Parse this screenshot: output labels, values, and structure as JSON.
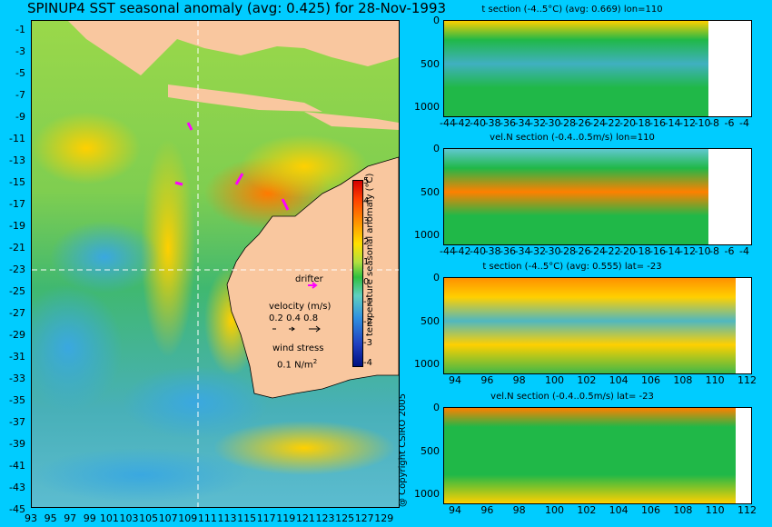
{
  "title": "SPINUP4 SST seasonal anomaly (avg: 0.425) for 28-Nov-1993",
  "map": {
    "lat_labels": [
      "-1",
      "-3",
      "-5",
      "-7",
      "-9",
      "-11",
      "-13",
      "-15",
      "-17",
      "-19",
      "-21",
      "-23",
      "-25",
      "-27",
      "-29",
      "-31",
      "-33",
      "-35",
      "-37",
      "-39",
      "-41",
      "-43",
      "-45"
    ],
    "lon_labels": [
      "93",
      "95",
      "97",
      "99",
      "101",
      "103",
      "105",
      "107",
      "109",
      "111",
      "113",
      "115",
      "117",
      "119",
      "121",
      "123",
      "125",
      "127",
      "129"
    ],
    "colorbar": {
      "ticks": [
        "5",
        "4",
        "3",
        "2",
        "1",
        "0",
        "-1",
        "-2",
        "-3",
        "-4"
      ],
      "title": "temperature seasonal anomaly (°C)"
    },
    "legend": {
      "drifter": "drifter",
      "velocity_title": "velocity (m/s)",
      "velocity_values": "0.2 0.4 0.8",
      "wind_title": "wind stress",
      "wind_value": "0.1 N/m",
      "wind_exp": "2"
    },
    "colors": {
      "land": "#f9c79f",
      "ocean_mid": "#36b544",
      "warm": "#ffd000",
      "cool": "#4ab4d8",
      "drifter": "#ff00ff"
    }
  },
  "panels": [
    {
      "title": "t section (-4..5°C) (avg: 0.669) lon=110",
      "y_ticks": [
        "0",
        "500",
        "1000"
      ],
      "x_ticks": [
        "-44",
        "-42",
        "-40",
        "-38",
        "-36",
        "-34",
        "-32",
        "-30",
        "-28",
        "-26",
        "-24",
        "-22",
        "-20",
        "-18",
        "-16",
        "-14",
        "-12",
        "-10",
        "-8",
        "-6",
        "-4"
      ]
    },
    {
      "title": "vel.N section (-0.4..0.5m/s) lon=110",
      "y_ticks": [
        "0",
        "500",
        "1000"
      ],
      "x_ticks": [
        "-44",
        "-42",
        "-40",
        "-38",
        "-36",
        "-34",
        "-32",
        "-30",
        "-28",
        "-26",
        "-24",
        "-22",
        "-20",
        "-18",
        "-16",
        "-14",
        "-12",
        "-10",
        "-8",
        "-6",
        "-4"
      ]
    },
    {
      "title": "t section (-4..5°C) (avg: 0.555) lat= -23",
      "y_ticks": [
        "0",
        "500",
        "1000"
      ],
      "x_ticks": [
        "94",
        "96",
        "98",
        "100",
        "102",
        "104",
        "106",
        "108",
        "110",
        "112"
      ]
    },
    {
      "title": "vel.N section (-0.4..0.5m/s) lat= -23",
      "y_ticks": [
        "0",
        "500",
        "1000"
      ],
      "x_ticks": [
        "94",
        "96",
        "98",
        "100",
        "102",
        "104",
        "106",
        "108",
        "110",
        "112"
      ]
    }
  ],
  "copyright": "@ Copyright CSIRO 2005"
}
